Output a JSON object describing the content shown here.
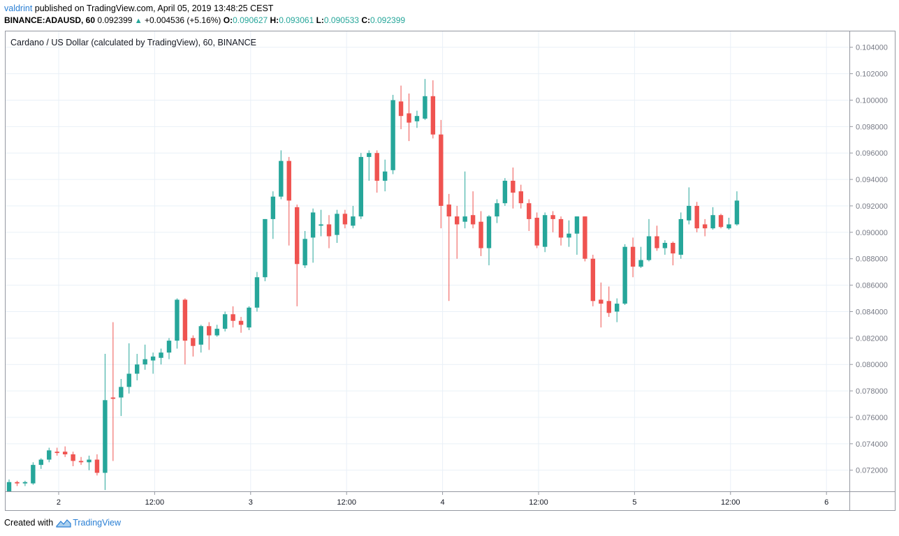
{
  "header": {
    "author": "valdrint",
    "published_text": "published on TradingView.com, April 05, 2019 13:48:25 CEST",
    "symbol": "BINANCE:ADAUSD, 60",
    "last": "0.092399",
    "change": "+0.004536 (+5.16%)",
    "open_label": "O:",
    "open": "0.090627",
    "high_label": "H:",
    "high": "0.093061",
    "low_label": "L:",
    "low": "0.090533",
    "close_label": "C:",
    "close": "0.092399"
  },
  "footer": {
    "created_with": "Created with",
    "brand": "TradingView"
  },
  "colors": {
    "up": "#26a69a",
    "down": "#ef5350",
    "grid": "#e9f0f7",
    "axis": "#787b86"
  },
  "chart_data": {
    "type": "candlestick",
    "title": "Cardano / US Dollar (calculated by TradingView), 60, BINANCE",
    "ylim": [
      0.0704,
      0.1052
    ],
    "y_ticks": [
      "0.072000",
      "0.074000",
      "0.076000",
      "0.078000",
      "0.080000",
      "0.082000",
      "0.084000",
      "0.086000",
      "0.088000",
      "0.090000",
      "0.092000",
      "0.094000",
      "0.096000",
      "0.098000",
      "0.100000",
      "0.102000",
      "0.104000"
    ],
    "x_tick_labels": [
      "2",
      "12:00",
      "3",
      "12:00",
      "4",
      "12:00",
      "5",
      "12:00",
      "6"
    ],
    "candles": [
      {
        "o": 0.0704,
        "h": 0.0713,
        "l": 0.0704,
        "c": 0.0711
      },
      {
        "o": 0.0711,
        "h": 0.0712,
        "l": 0.0708,
        "c": 0.071
      },
      {
        "o": 0.071,
        "h": 0.0712,
        "l": 0.0708,
        "c": 0.0711
      },
      {
        "o": 0.071,
        "h": 0.0726,
        "l": 0.0709,
        "c": 0.0724
      },
      {
        "o": 0.0724,
        "h": 0.0729,
        "l": 0.0721,
        "c": 0.0728
      },
      {
        "o": 0.0728,
        "h": 0.0737,
        "l": 0.0726,
        "c": 0.0735
      },
      {
        "o": 0.0734,
        "h": 0.0737,
        "l": 0.0731,
        "c": 0.0733
      },
      {
        "o": 0.0734,
        "h": 0.0738,
        "l": 0.073,
        "c": 0.0732
      },
      {
        "o": 0.0732,
        "h": 0.0734,
        "l": 0.0723,
        "c": 0.0727
      },
      {
        "o": 0.0727,
        "h": 0.073,
        "l": 0.0724,
        "c": 0.0726
      },
      {
        "o": 0.0726,
        "h": 0.0731,
        "l": 0.072,
        "c": 0.0728
      },
      {
        "o": 0.0728,
        "h": 0.0732,
        "l": 0.0716,
        "c": 0.0718
      },
      {
        "o": 0.0718,
        "h": 0.0808,
        "l": 0.0705,
        "c": 0.0773
      },
      {
        "o": 0.0775,
        "h": 0.0832,
        "l": 0.0727,
        "c": 0.0774
      },
      {
        "o": 0.0775,
        "h": 0.0789,
        "l": 0.0761,
        "c": 0.0783
      },
      {
        "o": 0.0783,
        "h": 0.0816,
        "l": 0.0778,
        "c": 0.0793
      },
      {
        "o": 0.0793,
        "h": 0.0808,
        "l": 0.0788,
        "c": 0.08
      },
      {
        "o": 0.08,
        "h": 0.0815,
        "l": 0.0796,
        "c": 0.0804
      },
      {
        "o": 0.0803,
        "h": 0.0809,
        "l": 0.0793,
        "c": 0.0806
      },
      {
        "o": 0.0805,
        "h": 0.0812,
        "l": 0.08,
        "c": 0.0809
      },
      {
        "o": 0.0809,
        "h": 0.082,
        "l": 0.0804,
        "c": 0.0818
      },
      {
        "o": 0.0818,
        "h": 0.085,
        "l": 0.0812,
        "c": 0.0849
      },
      {
        "o": 0.0849,
        "h": 0.085,
        "l": 0.08,
        "c": 0.0818
      },
      {
        "o": 0.082,
        "h": 0.0822,
        "l": 0.0806,
        "c": 0.0814
      },
      {
        "o": 0.0815,
        "h": 0.083,
        "l": 0.0809,
        "c": 0.0829
      },
      {
        "o": 0.0829,
        "h": 0.0832,
        "l": 0.0811,
        "c": 0.0822
      },
      {
        "o": 0.0822,
        "h": 0.083,
        "l": 0.0821,
        "c": 0.0827
      },
      {
        "o": 0.0827,
        "h": 0.084,
        "l": 0.0825,
        "c": 0.0838
      },
      {
        "o": 0.0838,
        "h": 0.0844,
        "l": 0.0828,
        "c": 0.0833
      },
      {
        "o": 0.0833,
        "h": 0.0836,
        "l": 0.0824,
        "c": 0.083
      },
      {
        "o": 0.0828,
        "h": 0.0844,
        "l": 0.0826,
        "c": 0.0843
      },
      {
        "o": 0.0843,
        "h": 0.087,
        "l": 0.084,
        "c": 0.0866
      },
      {
        "o": 0.0866,
        "h": 0.091,
        "l": 0.0863,
        "c": 0.091
      },
      {
        "o": 0.091,
        "h": 0.0931,
        "l": 0.0895,
        "c": 0.0927
      },
      {
        "o": 0.0927,
        "h": 0.0962,
        "l": 0.0925,
        "c": 0.0954
      },
      {
        "o": 0.0954,
        "h": 0.0957,
        "l": 0.089,
        "c": 0.0924
      },
      {
        "o": 0.0919,
        "h": 0.0921,
        "l": 0.0844,
        "c": 0.0876
      },
      {
        "o": 0.0875,
        "h": 0.0901,
        "l": 0.0873,
        "c": 0.0895
      },
      {
        "o": 0.0896,
        "h": 0.0918,
        "l": 0.0877,
        "c": 0.0915
      },
      {
        "o": 0.0905,
        "h": 0.0917,
        "l": 0.0897,
        "c": 0.0906
      },
      {
        "o": 0.0906,
        "h": 0.0913,
        "l": 0.0888,
        "c": 0.0897
      },
      {
        "o": 0.0898,
        "h": 0.0917,
        "l": 0.0892,
        "c": 0.0914
      },
      {
        "o": 0.0914,
        "h": 0.0917,
        "l": 0.0903,
        "c": 0.0906
      },
      {
        "o": 0.0905,
        "h": 0.092,
        "l": 0.0903,
        "c": 0.0912
      },
      {
        "o": 0.0912,
        "h": 0.096,
        "l": 0.091,
        "c": 0.0957
      },
      {
        "o": 0.0957,
        "h": 0.0962,
        "l": 0.0939,
        "c": 0.096
      },
      {
        "o": 0.096,
        "h": 0.0962,
        "l": 0.093,
        "c": 0.0939
      },
      {
        "o": 0.0939,
        "h": 0.0955,
        "l": 0.0931,
        "c": 0.0946
      },
      {
        "o": 0.0947,
        "h": 0.1004,
        "l": 0.0944,
        "c": 0.1
      },
      {
        "o": 0.0999,
        "h": 0.1011,
        "l": 0.0978,
        "c": 0.0988
      },
      {
        "o": 0.099,
        "h": 0.1005,
        "l": 0.0969,
        "c": 0.0983
      },
      {
        "o": 0.0984,
        "h": 0.0992,
        "l": 0.0979,
        "c": 0.0988
      },
      {
        "o": 0.0986,
        "h": 0.1016,
        "l": 0.0985,
        "c": 0.1003
      },
      {
        "o": 0.1003,
        "h": 0.1015,
        "l": 0.0971,
        "c": 0.0974
      },
      {
        "o": 0.0974,
        "h": 0.0985,
        "l": 0.0903,
        "c": 0.092
      },
      {
        "o": 0.0921,
        "h": 0.0929,
        "l": 0.0848,
        "c": 0.0912
      },
      {
        "o": 0.0912,
        "h": 0.092,
        "l": 0.088,
        "c": 0.0906
      },
      {
        "o": 0.0908,
        "h": 0.0946,
        "l": 0.0903,
        "c": 0.0912
      },
      {
        "o": 0.0913,
        "h": 0.0931,
        "l": 0.0903,
        "c": 0.0906
      },
      {
        "o": 0.0908,
        "h": 0.0916,
        "l": 0.0882,
        "c": 0.0888
      },
      {
        "o": 0.0888,
        "h": 0.0913,
        "l": 0.0875,
        "c": 0.0912
      },
      {
        "o": 0.0912,
        "h": 0.0925,
        "l": 0.0907,
        "c": 0.0922
      },
      {
        "o": 0.0922,
        "h": 0.0941,
        "l": 0.092,
        "c": 0.0939
      },
      {
        "o": 0.0939,
        "h": 0.0949,
        "l": 0.0918,
        "c": 0.093
      },
      {
        "o": 0.0931,
        "h": 0.0936,
        "l": 0.0918,
        "c": 0.0922
      },
      {
        "o": 0.0922,
        "h": 0.0925,
        "l": 0.0901,
        "c": 0.091
      },
      {
        "o": 0.0911,
        "h": 0.0915,
        "l": 0.0888,
        "c": 0.089
      },
      {
        "o": 0.0889,
        "h": 0.0915,
        "l": 0.0885,
        "c": 0.0913
      },
      {
        "o": 0.0913,
        "h": 0.0916,
        "l": 0.09,
        "c": 0.091
      },
      {
        "o": 0.091,
        "h": 0.0912,
        "l": 0.089,
        "c": 0.0896
      },
      {
        "o": 0.0896,
        "h": 0.0909,
        "l": 0.0889,
        "c": 0.0899
      },
      {
        "o": 0.0899,
        "h": 0.0912,
        "l": 0.0883,
        "c": 0.0912
      },
      {
        "o": 0.0912,
        "h": 0.0912,
        "l": 0.0878,
        "c": 0.088
      },
      {
        "o": 0.088,
        "h": 0.0883,
        "l": 0.0844,
        "c": 0.0848
      },
      {
        "o": 0.0849,
        "h": 0.0862,
        "l": 0.0828,
        "c": 0.0846
      },
      {
        "o": 0.0848,
        "h": 0.0859,
        "l": 0.0836,
        "c": 0.0839
      },
      {
        "o": 0.084,
        "h": 0.085,
        "l": 0.0832,
        "c": 0.0846
      },
      {
        "o": 0.0846,
        "h": 0.0891,
        "l": 0.0845,
        "c": 0.0889
      },
      {
        "o": 0.0889,
        "h": 0.0896,
        "l": 0.0866,
        "c": 0.0874
      },
      {
        "o": 0.0874,
        "h": 0.0889,
        "l": 0.0873,
        "c": 0.0879
      },
      {
        "o": 0.0879,
        "h": 0.091,
        "l": 0.0878,
        "c": 0.0897
      },
      {
        "o": 0.0897,
        "h": 0.0905,
        "l": 0.0886,
        "c": 0.0888
      },
      {
        "o": 0.0888,
        "h": 0.0894,
        "l": 0.0883,
        "c": 0.0892
      },
      {
        "o": 0.0892,
        "h": 0.0893,
        "l": 0.0875,
        "c": 0.0884
      },
      {
        "o": 0.0883,
        "h": 0.0915,
        "l": 0.088,
        "c": 0.091
      },
      {
        "o": 0.0909,
        "h": 0.0934,
        "l": 0.0906,
        "c": 0.092
      },
      {
        "o": 0.092,
        "h": 0.0923,
        "l": 0.09,
        "c": 0.0903
      },
      {
        "o": 0.0906,
        "h": 0.091,
        "l": 0.0897,
        "c": 0.0903
      },
      {
        "o": 0.0903,
        "h": 0.0919,
        "l": 0.0902,
        "c": 0.0913
      },
      {
        "o": 0.0913,
        "h": 0.0914,
        "l": 0.0903,
        "c": 0.0904
      },
      {
        "o": 0.0903,
        "h": 0.0911,
        "l": 0.0902,
        "c": 0.0906
      },
      {
        "o": 0.0906,
        "h": 0.0931,
        "l": 0.0905,
        "c": 0.0924
      }
    ]
  }
}
